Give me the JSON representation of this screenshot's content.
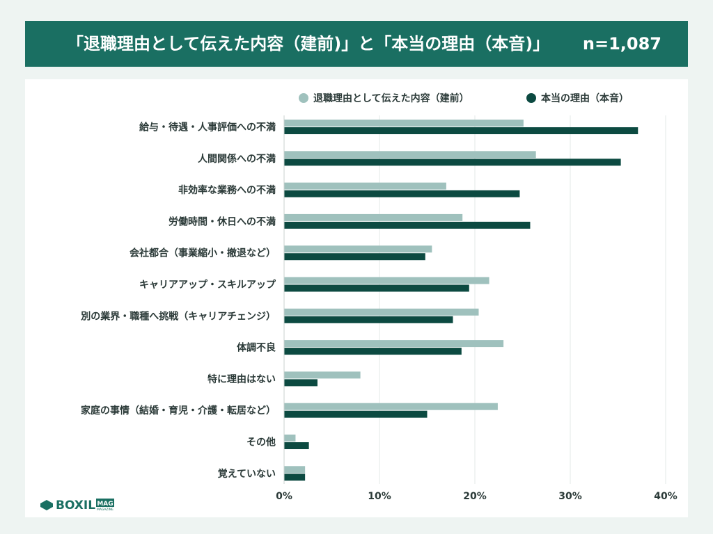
{
  "header": {
    "title": "「退職理由として伝えた内容（建前)」と「本当の理由（本音)」",
    "n": "n=1,087"
  },
  "logo": {
    "brand": "BOXIL",
    "tag": "MAG",
    "sub": "MAGAZINE",
    "icon": "boxil-logo-icon"
  },
  "colors": {
    "series1": "#9fc1bd",
    "series2": "#0c4a41",
    "grid": "#e3e8e7",
    "text": "#2b3a38",
    "header": "#1a6f62"
  },
  "chart_data": {
    "type": "bar",
    "orientation": "horizontal",
    "categories": [
      "給与・待遇・人事評価への不満",
      "人間関係への不満",
      "非効率な業務への不満",
      "労働時間・休日への不満",
      "会社都合（事業縮小・撤退など）",
      "キャリアアップ・スキルアップ",
      "別の業界・職種へ挑戦（キャリアチェンジ）",
      "体調不良",
      "特に理由はない",
      "家庭の事情（結婚・育児・介護・転居など）",
      "その他",
      "覚えていない"
    ],
    "series": [
      {
        "name": "退職理由として伝えた内容（建前）",
        "values": [
          25.1,
          26.4,
          17.0,
          18.7,
          15.5,
          21.5,
          20.4,
          23.0,
          8.0,
          22.4,
          1.2,
          2.2
        ]
      },
      {
        "name": "本当の理由（本音）",
        "values": [
          37.1,
          35.3,
          24.7,
          25.8,
          14.8,
          19.4,
          17.7,
          18.6,
          3.5,
          15.0,
          2.6,
          2.2
        ]
      }
    ],
    "xlim": [
      0,
      40
    ],
    "xticks": [
      "0%",
      "10%",
      "20%",
      "30%",
      "40%"
    ],
    "grid": true,
    "legend": "top-right"
  }
}
